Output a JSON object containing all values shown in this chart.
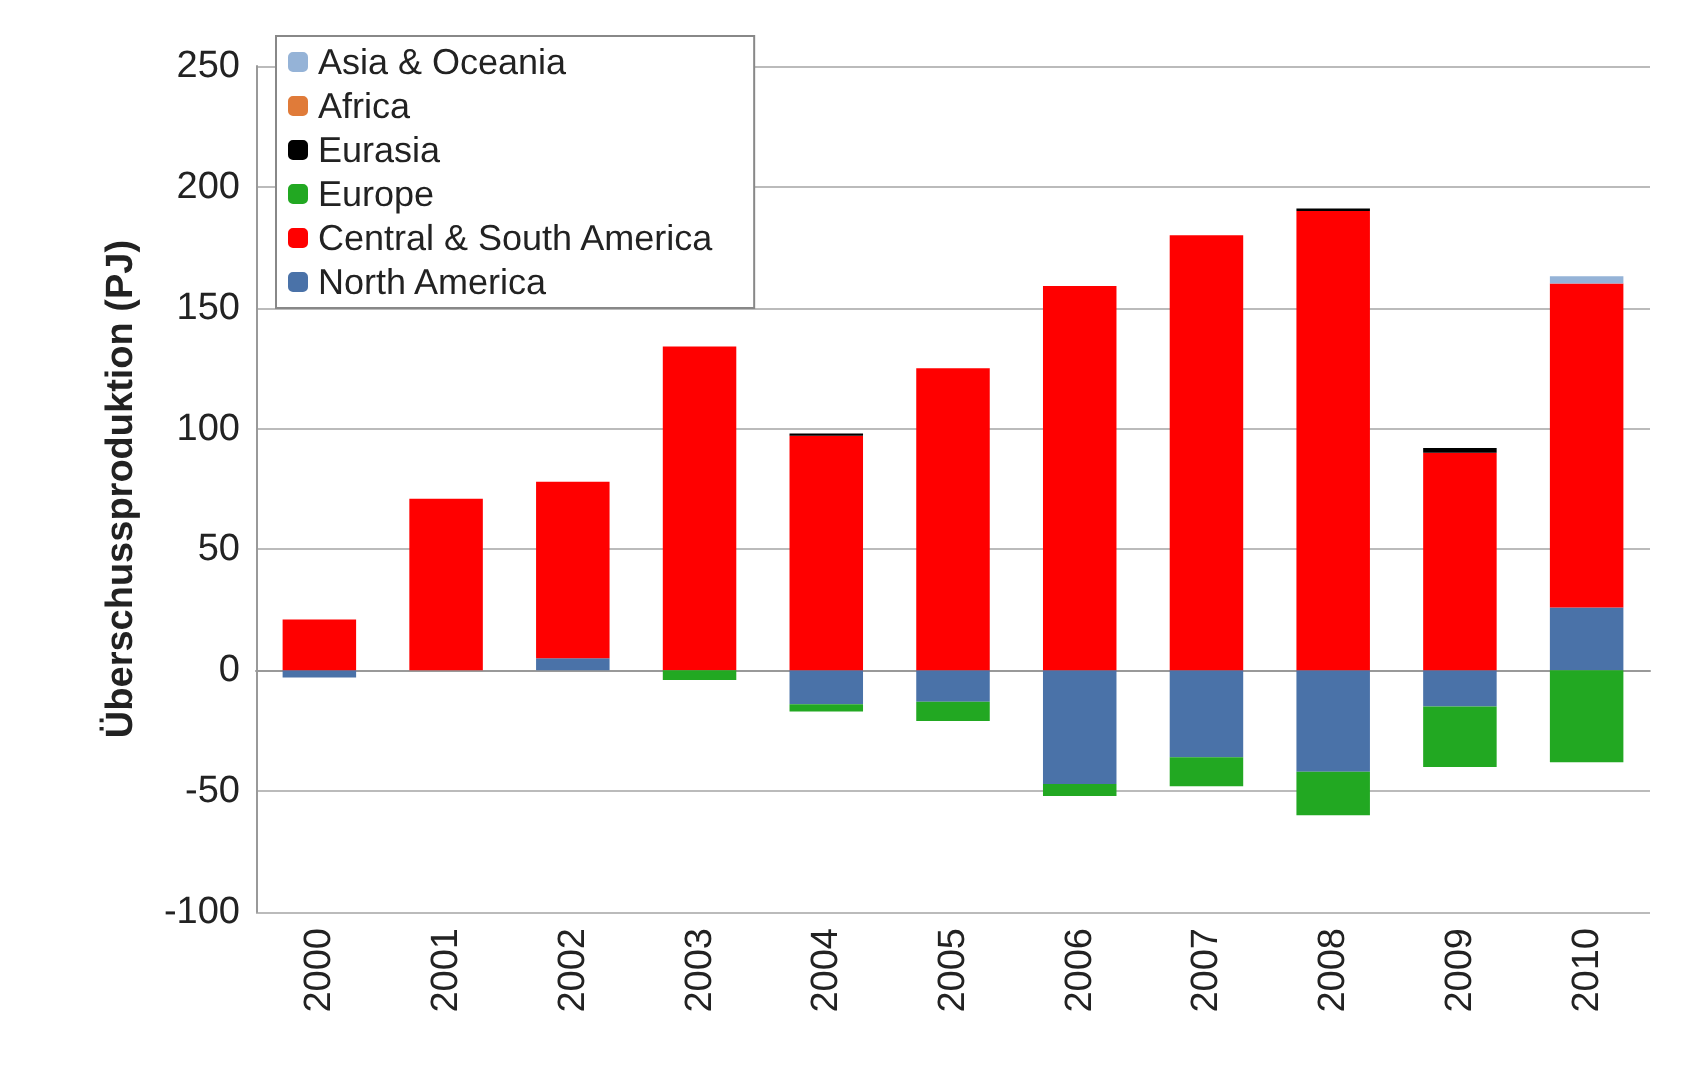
{
  "chart_data": {
    "type": "bar",
    "stacked": true,
    "ylabel": "Überschussproduktion (PJ)",
    "categories": [
      "2000",
      "2001",
      "2002",
      "2003",
      "2004",
      "2005",
      "2006",
      "2007",
      "2008",
      "2009",
      "2010"
    ],
    "series": [
      {
        "name": "North America",
        "color": "#4a72a8",
        "values": [
          -3,
          0,
          5,
          0,
          -14,
          -13,
          -47,
          -36,
          -42,
          -15,
          26
        ]
      },
      {
        "name": "Central & South America",
        "color": "#ff0000",
        "values": [
          21,
          71,
          73,
          134,
          97,
          125,
          159,
          180,
          190,
          90,
          134
        ]
      },
      {
        "name": "Europe",
        "color": "#22a822",
        "values": [
          0,
          0,
          0,
          -4,
          -3,
          -8,
          -5,
          -12,
          -18,
          -25,
          -38
        ]
      },
      {
        "name": "Eurasia",
        "color": "#000000",
        "values": [
          0,
          0,
          0,
          0,
          1,
          0,
          0,
          0,
          1,
          2,
          0
        ]
      },
      {
        "name": "Africa",
        "color": "#e07b39",
        "values": [
          0,
          0,
          0,
          0,
          0,
          0,
          0,
          0,
          0,
          0,
          0
        ]
      },
      {
        "name": "Asia & Oceania",
        "color": "#95b3d7",
        "values": [
          0,
          0,
          0,
          0,
          0,
          0,
          0,
          0,
          0,
          0,
          3
        ]
      }
    ],
    "ylim": [
      -100,
      250
    ],
    "yticks": [
      -100,
      -50,
      0,
      50,
      100,
      150,
      200,
      250
    ],
    "grid": "y",
    "legend": "top left"
  }
}
